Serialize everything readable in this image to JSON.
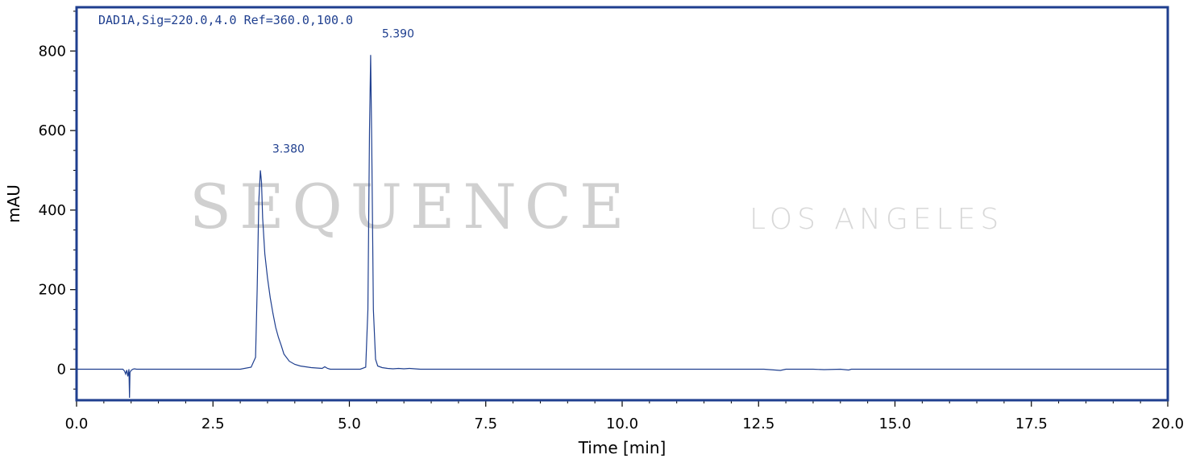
{
  "watermark": {
    "main": "SEQUENCE",
    "sub": "LOS ANGELES"
  },
  "chart_data": {
    "type": "line",
    "signal_label": "DAD1A,Sig=220.0,4.0 Ref=360.0,100.0",
    "xlabel": "Time [min]",
    "ylabel": "mAU",
    "xlim": [
      0,
      20
    ],
    "ylim": [
      -78,
      910
    ],
    "x_ticks": [
      0,
      2.5,
      5,
      7.5,
      10,
      12.5,
      15,
      17.5,
      20
    ],
    "x_tick_labels": [
      "0.0",
      "2.5",
      "5.0",
      "7.5",
      "10.0",
      "12.5",
      "15.0",
      "17.5",
      "20.0"
    ],
    "y_ticks": [
      0,
      200,
      400,
      600,
      800
    ],
    "y_tick_labels": [
      "0",
      "200",
      "400",
      "600",
      "800"
    ],
    "grid": false,
    "line_color": "#1f3f8f",
    "frame_color": "#1f3f8f",
    "peaks": [
      {
        "x": 3.38,
        "y": 500,
        "label": "3.380"
      },
      {
        "x": 5.39,
        "y": 790,
        "label": "5.390"
      }
    ],
    "series": [
      {
        "x": [
          0.0,
          0.85,
          0.88,
          0.9,
          0.92,
          0.94,
          0.96,
          0.97,
          0.98,
          1.0,
          1.03,
          1.06,
          1.1,
          1.2,
          2.0,
          3.0,
          3.2,
          3.28,
          3.31,
          3.34,
          3.37,
          3.39,
          3.41,
          3.45,
          3.5,
          3.55,
          3.6,
          3.65,
          3.7,
          3.75,
          3.8,
          3.9,
          4.0,
          4.1,
          4.2,
          4.3,
          4.4,
          4.5,
          4.55,
          4.6,
          4.65,
          4.7,
          4.8,
          5.0,
          5.2,
          5.3,
          5.34,
          5.37,
          5.39,
          5.41,
          5.44,
          5.48,
          5.52,
          5.6,
          5.7,
          5.8,
          5.9,
          6.0,
          6.1,
          6.3,
          7.0,
          8.0,
          9.0,
          10.0,
          11.0,
          12.0,
          12.6,
          12.8,
          12.9,
          13.0,
          13.5,
          13.7,
          14.0,
          14.15,
          14.2,
          14.5,
          15.0,
          17.5,
          20.0
        ],
        "y": [
          0,
          0,
          -5,
          -12,
          -2,
          -18,
          0,
          -72,
          -8,
          -3,
          0,
          1,
          0,
          0,
          0,
          0,
          5,
          30,
          200,
          420,
          500,
          470,
          380,
          290,
          230,
          180,
          140,
          105,
          80,
          60,
          38,
          20,
          12,
          8,
          6,
          4,
          3,
          2,
          6,
          2,
          0,
          0,
          0,
          0,
          0,
          5,
          150,
          600,
          790,
          560,
          150,
          25,
          8,
          4,
          2,
          1,
          2,
          1,
          2,
          0,
          0,
          0,
          0,
          0,
          0,
          0,
          0,
          -2,
          -3,
          0,
          0,
          -1,
          0,
          -2,
          0,
          0,
          0,
          0,
          0
        ]
      }
    ]
  }
}
